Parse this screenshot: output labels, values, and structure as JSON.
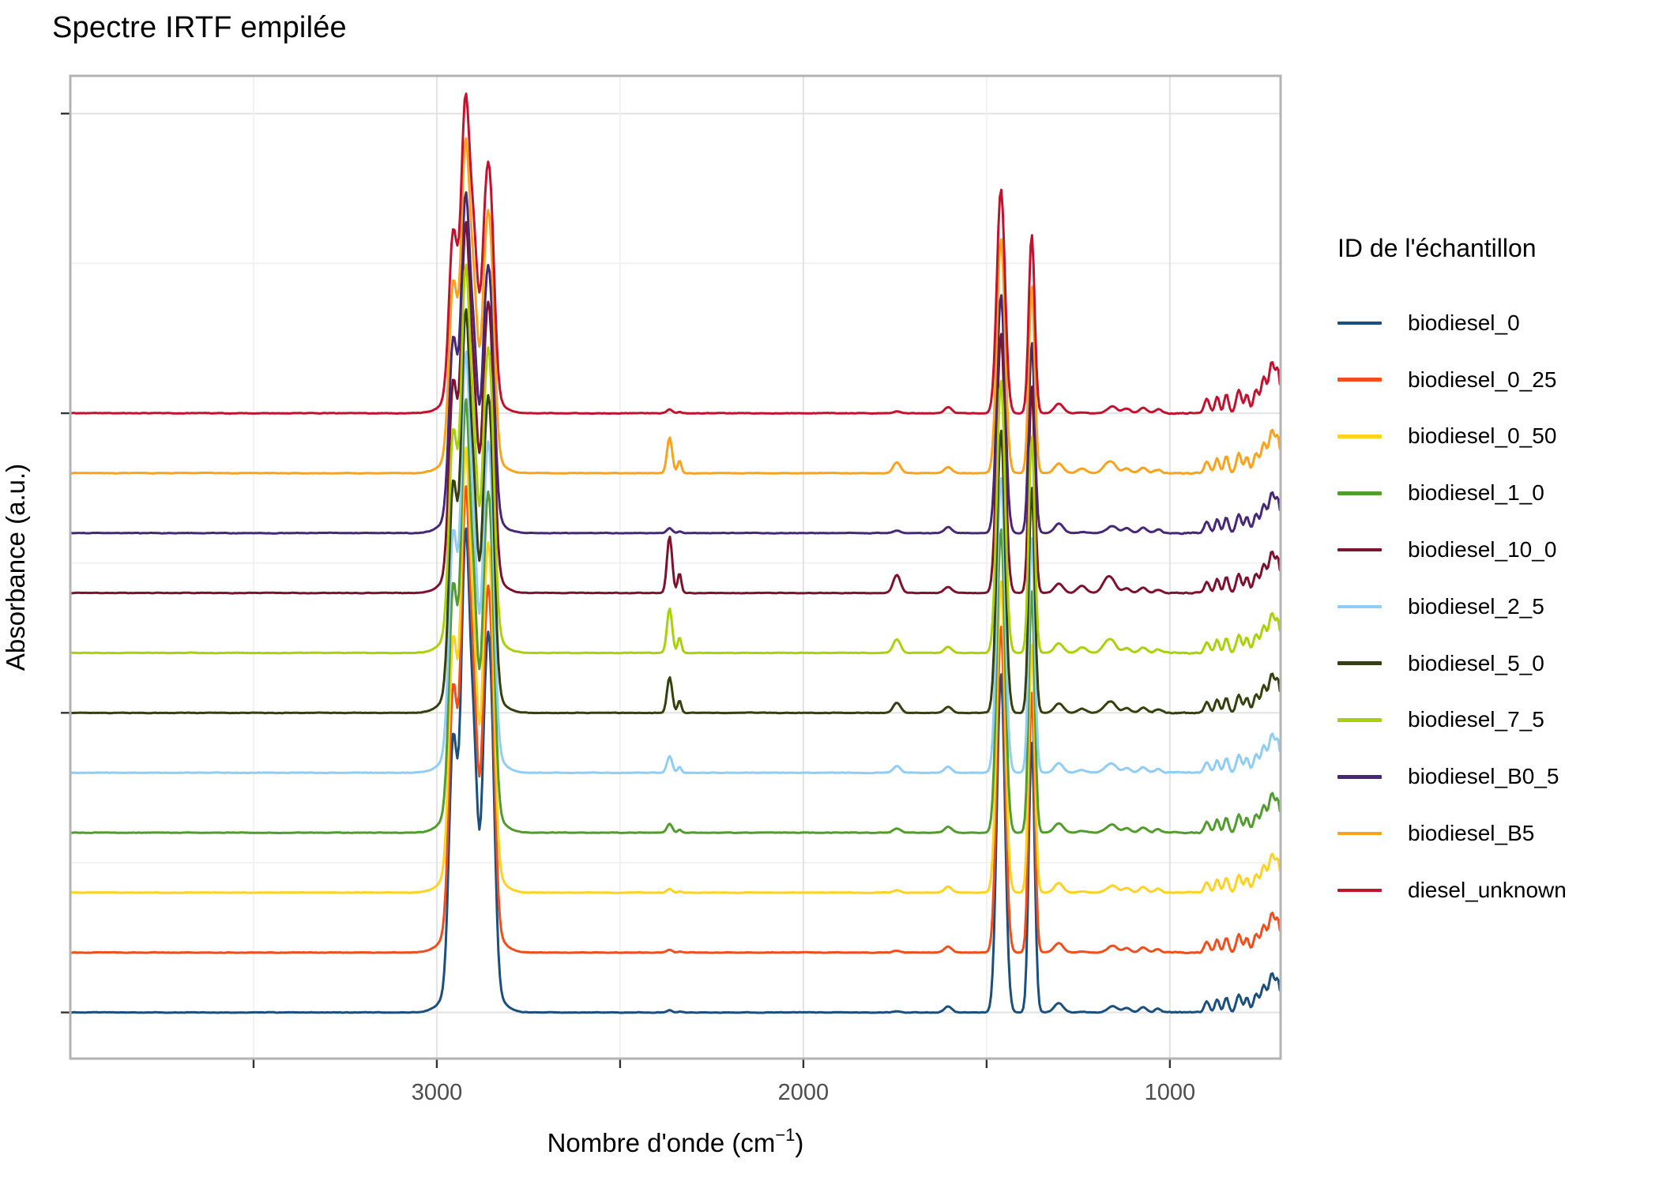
{
  "title": "Spectre IRTF empilée",
  "axes": {
    "x": {
      "title_prefix": "Nombre d'onde (cm",
      "title_sup": "−1",
      "title_suffix": ")"
    },
    "y": {
      "title": "Absorbance (a.u.)"
    }
  },
  "legend": {
    "title": "ID de l'échantillon"
  },
  "colors": {
    "axis_text": "#4d4d4d",
    "tick": "#333333",
    "panel_border": "#b3b3b3",
    "grid_major": "#e4e4e4",
    "grid_minor": "#efefef",
    "background": "#ffffff"
  },
  "chart_data": {
    "type": "line",
    "title": "Spectre IRTF empilée",
    "xlabel": "Nombre d'onde (cm−1)",
    "ylabel": "Absorbance (a.u.)",
    "x_axis": {
      "min": 698,
      "max": 4000,
      "reversed": true,
      "ticks": [
        {
          "value": 3500,
          "label": "",
          "major": false
        },
        {
          "value": 3000,
          "label": "3000",
          "major": true
        },
        {
          "value": 2500,
          "label": "",
          "major": false
        },
        {
          "value": 2000,
          "label": "2000",
          "major": true
        },
        {
          "value": 1500,
          "label": "",
          "major": false
        },
        {
          "value": 1000,
          "label": "1000",
          "major": true
        }
      ]
    },
    "y_axis": {
      "min": -0.77,
      "max": 15.63,
      "unit": "a.u.",
      "ticks": [
        {
          "value": 0,
          "label": "",
          "major": true
        },
        {
          "value": 5,
          "label": "",
          "major": true
        },
        {
          "value": 10,
          "label": "",
          "major": true
        },
        {
          "value": 15,
          "label": "",
          "major": true
        }
      ],
      "minor": [
        2.5,
        7.5,
        12.5
      ]
    },
    "noise_amp": 0.016,
    "shared_peaks": [
      {
        "c": 2956,
        "s": 11,
        "k": 0.48,
        "v": "H"
      },
      {
        "c": 2922,
        "s": 12,
        "k": 0.835,
        "v": "H"
      },
      {
        "c": 2898,
        "s": 10,
        "k": 0.33,
        "v": "H"
      },
      {
        "c": 2868,
        "s": 10,
        "k": 0.37,
        "v": "H"
      },
      {
        "c": 2853,
        "s": 11,
        "k": 0.52,
        "v": "H"
      },
      {
        "c": 2905,
        "s": 45,
        "k": 0.15,
        "v": "H"
      },
      {
        "c": 1461,
        "s": 11,
        "k": 0.7,
        "v": "H"
      },
      {
        "c": 1377,
        "s": 8,
        "k": 0.56,
        "v": "H"
      },
      {
        "c": 2365,
        "s": 7,
        "k": 1.0,
        "v": "CO2"
      },
      {
        "c": 2338,
        "s": 5,
        "k": 0.35,
        "v": "CO2"
      },
      {
        "c": 1745,
        "s": 10,
        "k": 1.0,
        "v": "FAME"
      },
      {
        "c": 1240,
        "s": 12,
        "k": 0.4,
        "v": "FAME"
      },
      {
        "c": 1170,
        "s": 14,
        "k": 0.75,
        "v": "FAME"
      },
      {
        "c": 1605,
        "s": 10,
        "k": 0.1,
        "v": "ONE"
      },
      {
        "c": 1303,
        "s": 12,
        "k": 0.16,
        "v": "ONE"
      },
      {
        "c": 1155,
        "s": 12,
        "k": 0.1,
        "v": "ONE"
      },
      {
        "c": 1118,
        "s": 10,
        "k": 0.08,
        "v": "ONE"
      },
      {
        "c": 1073,
        "s": 10,
        "k": 0.09,
        "v": "ONE"
      },
      {
        "c": 1032,
        "s": 9,
        "k": 0.06,
        "v": "ONE"
      },
      {
        "c": 899,
        "s": 7,
        "k": 0.18,
        "v": "EDGE"
      },
      {
        "c": 871,
        "s": 6,
        "k": 0.22,
        "v": "EDGE"
      },
      {
        "c": 846,
        "s": 6,
        "k": 0.25,
        "v": "EDGE"
      },
      {
        "c": 812,
        "s": 7,
        "k": 0.3,
        "v": "EDGE"
      },
      {
        "c": 790,
        "s": 6,
        "k": 0.25,
        "v": "EDGE"
      },
      {
        "c": 765,
        "s": 7,
        "k": 0.3,
        "v": "EDGE"
      },
      {
        "c": 744,
        "s": 7,
        "k": 0.45,
        "v": "EDGE"
      },
      {
        "c": 722,
        "s": 8,
        "k": 0.65,
        "v": "EDGE"
      },
      {
        "c": 705,
        "s": 6,
        "k": 0.5,
        "v": "EDGE"
      }
    ],
    "series": [
      {
        "name": "biodiesel_0",
        "color": "#1b4f7d",
        "offset": 0,
        "vars": {
          "H": 8.1,
          "CO2": 0.04,
          "FAME": 0.02,
          "EDGE": 1.0,
          "ONE": 1
        }
      },
      {
        "name": "biodiesel_0_25",
        "color": "#f04e1d",
        "offset": 1,
        "vars": {
          "H": 7.8,
          "CO2": 0.05,
          "FAME": 0.03,
          "EDGE": 1.0,
          "ONE": 1
        }
      },
      {
        "name": "biodiesel_0_50",
        "color": "#fdd221",
        "offset": 2,
        "vars": {
          "H": 7.45,
          "CO2": 0.06,
          "FAME": 0.04,
          "EDGE": 1.0,
          "ONE": 1
        }
      },
      {
        "name": "biodiesel_1_0",
        "color": "#529c2e",
        "offset": 3,
        "vars": {
          "H": 7.25,
          "CO2": 0.15,
          "FAME": 0.07,
          "EDGE": 1.0,
          "ONE": 1
        }
      },
      {
        "name": "biodiesel_10_0",
        "color": "#7c122e",
        "offset": 7,
        "vars": {
          "H": 6.2,
          "CO2": 0.95,
          "FAME": 0.3,
          "EDGE": 1.05,
          "ONE": 1
        }
      },
      {
        "name": "biodiesel_2_5",
        "color": "#8fcdf4",
        "offset": 4,
        "vars": {
          "H": 7.05,
          "CO2": 0.28,
          "FAME": 0.11,
          "EDGE": 1.0,
          "ONE": 1
        }
      },
      {
        "name": "biodiesel_5_0",
        "color": "#35400e",
        "offset": 5,
        "vars": {
          "H": 6.75,
          "CO2": 0.6,
          "FAME": 0.17,
          "EDGE": 1.0,
          "ONE": 1
        }
      },
      {
        "name": "biodiesel_7_5",
        "color": "#a9d108",
        "offset": 6,
        "vars": {
          "H": 6.5,
          "CO2": 0.75,
          "FAME": 0.23,
          "EDGE": 1.0,
          "ONE": 1
        }
      },
      {
        "name": "biodiesel_B0_5",
        "color": "#472878",
        "offset": 8,
        "vars": {
          "H": 5.7,
          "CO2": 0.08,
          "FAME": 0.04,
          "EDGE": 1.05,
          "ONE": 1
        }
      },
      {
        "name": "biodiesel_B5",
        "color": "#f9a21c",
        "offset": 9,
        "vars": {
          "H": 5.6,
          "CO2": 0.6,
          "FAME": 0.18,
          "EDGE": 1.1,
          "ONE": 1
        }
      },
      {
        "name": "diesel_unknown",
        "color": "#c31230",
        "offset": 10,
        "vars": {
          "H": 5.35,
          "CO2": 0.06,
          "FAME": 0.03,
          "EDGE": 1.3,
          "ONE": 1
        }
      }
    ]
  }
}
